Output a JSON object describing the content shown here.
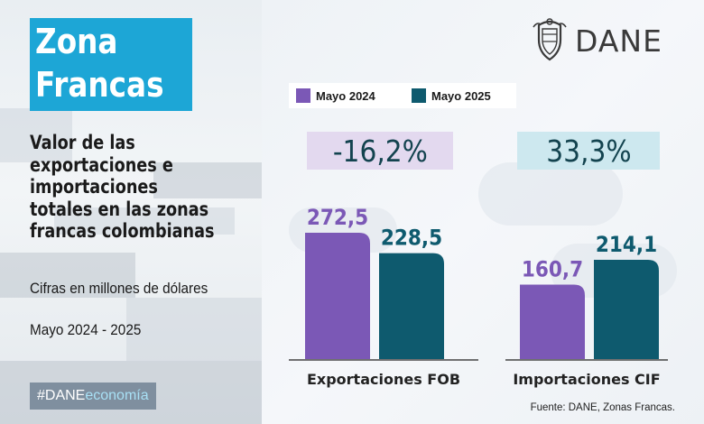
{
  "title": {
    "line1": "Zona",
    "line2": "Francas"
  },
  "subtitle_lines": [
    "Valor de las",
    "exportaciones e",
    "importaciones",
    "totales en las zonas",
    "francas colombianas"
  ],
  "units": "Cifras en millones de dólares",
  "period": "Mayo 2024 - 2025",
  "hashtag": {
    "part1": "#DANE",
    "part2": "economía"
  },
  "logo_text": "DANE",
  "source": "Fuente: DANE, Zonas Francas.",
  "colors": {
    "series_2024": "#7b58b6",
    "series_2025": "#0e5a6e",
    "accent": "#1da6d6"
  },
  "chart_data": {
    "type": "bar",
    "categories": [
      "Exportaciones FOB",
      "Importaciones CIF"
    ],
    "series": [
      {
        "name": "Mayo 2024",
        "values": [
          272.5,
          160.7
        ],
        "labels": [
          "272,5",
          "160,7"
        ],
        "color": "#7b58b6"
      },
      {
        "name": "Mayo 2025",
        "values": [
          228.5,
          214.1
        ],
        "labels": [
          "228,5",
          "214,1"
        ],
        "color": "#0e5a6e"
      }
    ],
    "changes": [
      "-16,2%",
      "33,3%"
    ],
    "ylim": [
      0,
      272.5
    ]
  }
}
